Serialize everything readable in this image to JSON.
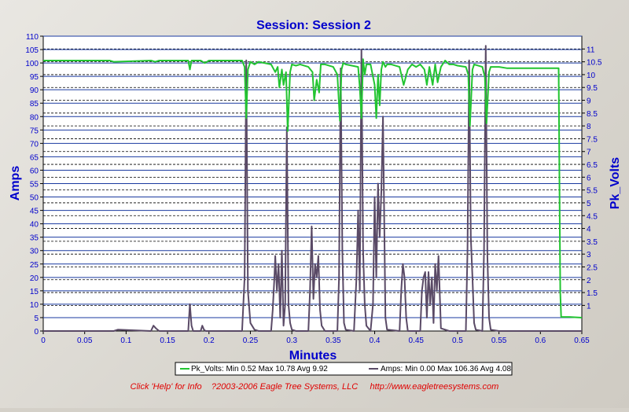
{
  "chart_data": {
    "type": "line",
    "title": "Session: Session 2",
    "xlabel": "Minutes",
    "ylabel_left": "Amps",
    "ylabel_right": "Pk_Volts",
    "xlim": [
      0,
      0.65
    ],
    "ylim_left": [
      0,
      110
    ],
    "ylim_right": [
      0,
      11.5
    ],
    "x_ticks": [
      "0",
      "0.05",
      "0.1",
      "0.15",
      "0.2",
      "0.25",
      "0.3",
      "0.35",
      "0.4",
      "0.45",
      "0.5",
      "0.55",
      "0.6",
      "0.65"
    ],
    "left_ticks": [
      "0",
      "5",
      "10",
      "15",
      "20",
      "25",
      "30",
      "35",
      "40",
      "45",
      "50",
      "55",
      "60",
      "65",
      "70",
      "75",
      "80",
      "85",
      "90",
      "95",
      "100",
      "105",
      "110"
    ],
    "right_ticks": [
      "1",
      "1.5",
      "2",
      "2.5",
      "3",
      "3.5",
      "4",
      "4.5",
      "5",
      "5.5",
      "6",
      "6.5",
      "7",
      "7.5",
      "8",
      "8.5",
      "9",
      "9.5",
      "10",
      "10.5",
      "11"
    ],
    "grid": true,
    "colors": {
      "pk_volts": "#22c431",
      "amps": "#5a4a66",
      "axis_text": "#0000cc",
      "grid_major": "#1a3aa0",
      "grid_minor": "#000000"
    },
    "series": [
      {
        "name": "Pk_Volts",
        "axis": "right",
        "x": [
          0,
          0.08,
          0.085,
          0.13,
          0.135,
          0.14,
          0.175,
          0.177,
          0.179,
          0.19,
          0.195,
          0.2,
          0.24,
          0.243,
          0.245,
          0.247,
          0.25,
          0.255,
          0.26,
          0.275,
          0.28,
          0.283,
          0.285,
          0.288,
          0.29,
          0.293,
          0.295,
          0.298,
          0.3,
          0.305,
          0.31,
          0.32,
          0.325,
          0.327,
          0.33,
          0.333,
          0.335,
          0.34,
          0.35,
          0.355,
          0.358,
          0.36,
          0.362,
          0.365,
          0.38,
          0.382,
          0.384,
          0.386,
          0.388,
          0.39,
          0.395,
          0.4,
          0.402,
          0.404,
          0.406,
          0.408,
          0.41,
          0.413,
          0.415,
          0.42,
          0.43,
          0.435,
          0.44,
          0.445,
          0.45,
          0.455,
          0.46,
          0.463,
          0.466,
          0.47,
          0.473,
          0.476,
          0.48,
          0.485,
          0.49,
          0.495,
          0.5,
          0.51,
          0.513,
          0.515,
          0.518,
          0.52,
          0.53,
          0.533,
          0.535,
          0.538,
          0.54,
          0.55,
          0.56,
          0.6,
          0.622,
          0.623,
          0.624,
          0.625,
          0.635,
          0.65
        ],
        "y": [
          10.55,
          10.55,
          10.5,
          10.55,
          10.5,
          10.55,
          10.55,
          10.2,
          10.55,
          10.55,
          10.45,
          10.55,
          10.55,
          10.3,
          8.3,
          10.2,
          10.5,
          10.4,
          10.5,
          10.4,
          10.1,
          10.3,
          9.5,
          10.2,
          9.6,
          10.1,
          7.8,
          10.1,
          10.4,
          10.35,
          10.4,
          10.3,
          10.1,
          9.0,
          9.8,
          9.3,
          10.4,
          10.4,
          10.3,
          10.0,
          8.2,
          10.2,
          10.45,
          10.4,
          10.3,
          9.5,
          8.3,
          10.6,
          10.0,
          10.4,
          10.4,
          9.6,
          8.3,
          10.0,
          8.8,
          10.2,
          10.5,
          10.3,
          10.4,
          10.4,
          10.3,
          9.6,
          10.2,
          10.4,
          10.3,
          10.4,
          10.2,
          9.6,
          10.3,
          9.6,
          10.4,
          9.7,
          10.3,
          10.55,
          10.4,
          10.4,
          10.35,
          10.3,
          10.0,
          8.0,
          10.2,
          10.4,
          10.3,
          9.9,
          8.1,
          10.1,
          10.3,
          10.3,
          10.25,
          10.25,
          10.25,
          6.0,
          1.5,
          0.55,
          0.55,
          0.52
        ]
      },
      {
        "name": "Amps",
        "axis": "left",
        "x": [
          0,
          0.085,
          0.09,
          0.13,
          0.133,
          0.136,
          0.14,
          0.175,
          0.177,
          0.179,
          0.181,
          0.19,
          0.192,
          0.194,
          0.196,
          0.24,
          0.243,
          0.245,
          0.247,
          0.25,
          0.255,
          0.26,
          0.275,
          0.277,
          0.279,
          0.28,
          0.282,
          0.284,
          0.286,
          0.288,
          0.29,
          0.292,
          0.294,
          0.296,
          0.298,
          0.3,
          0.305,
          0.32,
          0.322,
          0.324,
          0.326,
          0.328,
          0.33,
          0.332,
          0.334,
          0.336,
          0.34,
          0.355,
          0.357,
          0.359,
          0.361,
          0.363,
          0.365,
          0.375,
          0.378,
          0.38,
          0.382,
          0.384,
          0.386,
          0.388,
          0.39,
          0.395,
          0.398,
          0.4,
          0.402,
          0.404,
          0.406,
          0.408,
          0.41,
          0.413,
          0.415,
          0.43,
          0.432,
          0.434,
          0.436,
          0.438,
          0.44,
          0.455,
          0.457,
          0.459,
          0.461,
          0.463,
          0.465,
          0.467,
          0.469,
          0.471,
          0.473,
          0.475,
          0.477,
          0.48,
          0.49,
          0.5,
          0.51,
          0.512,
          0.514,
          0.516,
          0.518,
          0.52,
          0.522,
          0.53,
          0.532,
          0.534,
          0.536,
          0.538,
          0.54,
          0.55,
          0.6,
          0.622,
          0.625,
          0.65
        ],
        "y": [
          0,
          0,
          0.5,
          0,
          2,
          1,
          0,
          0,
          10,
          2,
          0,
          0,
          2,
          0.5,
          0,
          0,
          20,
          101,
          15,
          3,
          0.5,
          0,
          0,
          8,
          20,
          28,
          15,
          25,
          5,
          30,
          2,
          10,
          76,
          10,
          3,
          0.5,
          0,
          0,
          15,
          39,
          12,
          25,
          20,
          28,
          8,
          2,
          0,
          0,
          20,
          98,
          30,
          3,
          0.5,
          0,
          20,
          45,
          15,
          105,
          30,
          10,
          2,
          0,
          10,
          50,
          20,
          55,
          35,
          52,
          80,
          5,
          0.5,
          0,
          15,
          25,
          20,
          5,
          0,
          0,
          15,
          20,
          22,
          5,
          22,
          10,
          20,
          3,
          25,
          15,
          28,
          1,
          0,
          0,
          0,
          30,
          101,
          35,
          20,
          3,
          0.5,
          0,
          30,
          106.4,
          28,
          5,
          0.5,
          0,
          0,
          0,
          0,
          0
        ]
      }
    ],
    "legend": [
      {
        "text": "Pk_Volts:  Min 0.52 Max 10.78 Avg 9.92",
        "color": "#22c431"
      },
      {
        "text": "Amps:  Min 0.00 Max 106.36 Avg 4.08",
        "color": "#5a4a66"
      }
    ]
  },
  "footer": "Click 'Help' for Info    ?2003-2006 Eagle Tree Systems, LLC     http://www.eagletreesystems.com"
}
